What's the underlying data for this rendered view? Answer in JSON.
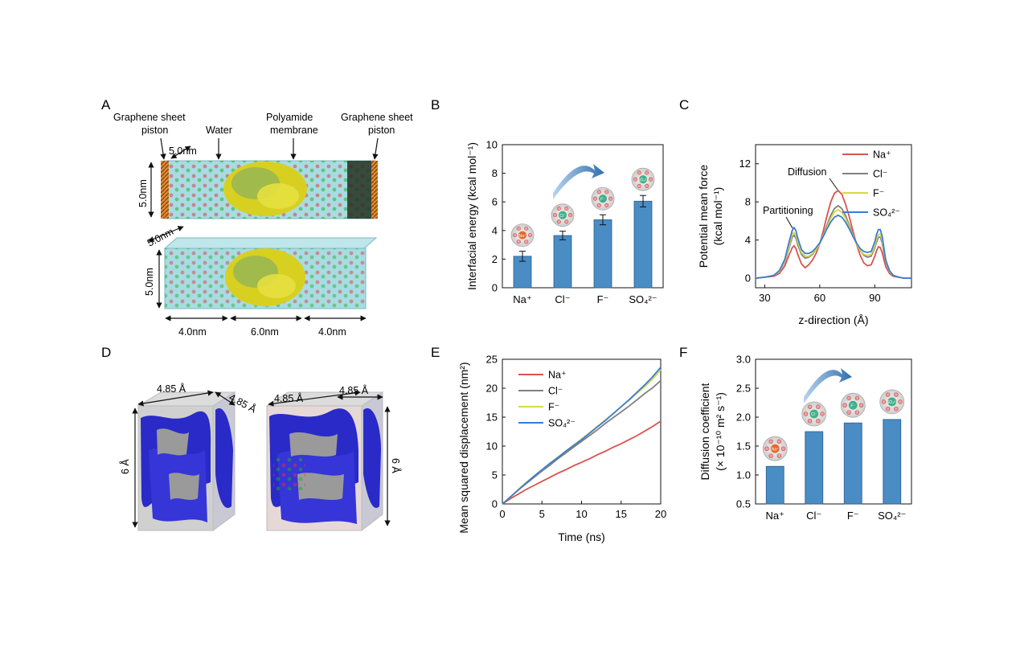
{
  "panels": {
    "A": {
      "letter": "A",
      "labels": {
        "piston_left_1": "Graphene sheet",
        "piston_left_2": "piston",
        "water": "Water",
        "poly_1": "Polyamide",
        "poly_2": "membrane",
        "piston_right_1": "Graphene sheet",
        "piston_right_2": "piston",
        "dim_top_depth": "5.0nm",
        "dim_top_height": "5.0nm",
        "dim_bot_depth": "5.0nm",
        "dim_bot_height": "5.0nm",
        "seg1": "4.0nm",
        "seg2": "6.0nm",
        "seg3": "4.0nm"
      }
    },
    "D": {
      "letter": "D",
      "labels": {
        "l_w": "4.85 Å",
        "l_d": "4.85 Å",
        "l_h": "6 Å",
        "r_w": "4.85 Å",
        "r_d": "4.85 Å",
        "r_h": "6 Å"
      }
    },
    "B": {
      "letter": "B"
    },
    "C": {
      "letter": "C",
      "annotations": {
        "diffusion": "Diffusion",
        "partitioning": "Partitioning"
      }
    },
    "E": {
      "letter": "E"
    },
    "F": {
      "letter": "F"
    }
  },
  "ion_icons": {
    "na": "Na⁺",
    "cl": "Cl⁻",
    "f": "F⁻",
    "so4": "SO₄²⁻"
  },
  "colors": {
    "bar": "#4a8cc4",
    "na": "#d9534f",
    "cl": "#808080",
    "f": "#d8d84a",
    "so4": "#3a7bd5",
    "arrow": "#3a7bbf"
  },
  "chart_data": [
    {
      "panel": "B",
      "type": "bar",
      "categories": [
        "Na⁺",
        "Cl⁻",
        "F⁻",
        "SO₄²⁻"
      ],
      "values": [
        2.2,
        3.65,
        4.75,
        6.05
      ],
      "errors": [
        0.35,
        0.3,
        0.35,
        0.4
      ],
      "ylabel": "Interfacial energy (kcal mol⁻¹)",
      "xlabel": "",
      "ylim": [
        0,
        10
      ],
      "yticks": [
        0,
        2,
        4,
        6,
        8,
        10
      ]
    },
    {
      "panel": "C",
      "type": "line",
      "xlabel": "z-direction (Å)",
      "ylabel_1": "Potential mean force",
      "ylabel_2": "(kcal mol⁻¹)",
      "xlim": [
        25,
        110
      ],
      "ylim": [
        -1,
        14
      ],
      "xticks": [
        30,
        60,
        90
      ],
      "yticks": [
        0,
        4,
        8,
        12
      ],
      "x": [
        25,
        30,
        35,
        38,
        41,
        43,
        45,
        46,
        47,
        48,
        50,
        52,
        54,
        56,
        58,
        60,
        62,
        64,
        66,
        68,
        70,
        72,
        74,
        76,
        78,
        80,
        82,
        84,
        86,
        88,
        90,
        91,
        92,
        93,
        94,
        95,
        96,
        98,
        100,
        103,
        106,
        110
      ],
      "series": [
        {
          "name": "Na⁺",
          "values": [
            0,
            0.1,
            0.2,
            0.5,
            1.3,
            2.3,
            3.2,
            3.4,
            3.1,
            2.5,
            1.5,
            1.1,
            1.4,
            1.9,
            2.6,
            3.6,
            5.0,
            6.6,
            8.0,
            8.9,
            9.2,
            8.8,
            7.8,
            6.5,
            5.0,
            3.6,
            2.4,
            1.6,
            1.3,
            1.4,
            2.3,
            2.9,
            3.3,
            3.2,
            2.7,
            1.9,
            1.2,
            0.5,
            0.2,
            0.1,
            0,
            0
          ]
        },
        {
          "name": "Cl⁻",
          "values": [
            0,
            0.1,
            0.3,
            0.7,
            1.7,
            3.0,
            4.3,
            4.5,
            4.2,
            3.5,
            2.5,
            2.1,
            2.2,
            2.5,
            3.0,
            3.7,
            4.6,
            5.6,
            6.6,
            7.3,
            7.6,
            7.3,
            6.6,
            5.6,
            4.6,
            3.7,
            2.9,
            2.4,
            2.2,
            2.3,
            3.2,
            3.8,
            4.3,
            4.3,
            3.7,
            2.6,
            1.7,
            0.7,
            0.3,
            0.1,
            0,
            0
          ]
        },
        {
          "name": "F⁻",
          "values": [
            0,
            0.1,
            0.3,
            0.7,
            1.8,
            3.2,
            4.6,
            4.8,
            4.5,
            3.8,
            2.7,
            2.3,
            2.3,
            2.6,
            3.0,
            3.6,
            4.5,
            5.4,
            6.3,
            6.9,
            7.2,
            6.9,
            6.3,
            5.4,
            4.5,
            3.6,
            2.9,
            2.5,
            2.4,
            2.5,
            3.4,
            4.1,
            4.6,
            4.6,
            4.0,
            2.8,
            1.8,
            0.7,
            0.3,
            0.1,
            0,
            0
          ]
        },
        {
          "name": "SO₄²⁻",
          "values": [
            0,
            0.1,
            0.3,
            0.8,
            2.0,
            3.6,
            5.0,
            5.3,
            5.0,
            4.2,
            3.0,
            2.6,
            2.6,
            2.8,
            3.2,
            3.7,
            4.4,
            5.2,
            5.9,
            6.4,
            6.6,
            6.4,
            5.9,
            5.2,
            4.4,
            3.7,
            3.1,
            2.8,
            2.7,
            2.8,
            3.8,
            4.6,
            5.1,
            5.1,
            4.4,
            3.1,
            1.9,
            0.8,
            0.3,
            0.1,
            0,
            0
          ]
        }
      ]
    },
    {
      "panel": "E",
      "type": "line",
      "xlabel": "Time (ns)",
      "ylabel": "Mean squared displacement (nm²)",
      "xlim": [
        0,
        20
      ],
      "ylim": [
        0,
        25
      ],
      "xticks": [
        0,
        5,
        10,
        15,
        20
      ],
      "yticks": [
        0,
        5,
        10,
        15,
        20,
        25
      ],
      "x": [
        0,
        1,
        2,
        3,
        4,
        5,
        6,
        7,
        8,
        9,
        10,
        11,
        12,
        13,
        14,
        15,
        16,
        17,
        18,
        19,
        20
      ],
      "series": [
        {
          "name": "Na⁺",
          "values": [
            0,
            0.9,
            1.7,
            2.5,
            3.2,
            3.9,
            4.6,
            5.3,
            5.9,
            6.6,
            7.2,
            7.8,
            8.5,
            9.1,
            9.8,
            10.4,
            11.1,
            11.8,
            12.6,
            13.4,
            14.3
          ]
        },
        {
          "name": "Cl⁻",
          "values": [
            0,
            1.2,
            2.4,
            3.5,
            4.6,
            5.7,
            6.7,
            7.8,
            8.8,
            9.8,
            10.8,
            11.8,
            12.8,
            13.9,
            14.9,
            15.9,
            16.9,
            18.0,
            19.1,
            20.1,
            21.3
          ]
        },
        {
          "name": "F⁻",
          "values": [
            0,
            1.2,
            2.5,
            3.7,
            4.8,
            5.9,
            7.0,
            8.1,
            9.1,
            10.2,
            11.2,
            12.3,
            13.4,
            14.5,
            15.6,
            16.8,
            17.9,
            19.1,
            20.3,
            21.6,
            23.2
          ]
        },
        {
          "name": "SO₄²⁻",
          "values": [
            0,
            1.2,
            2.4,
            3.6,
            4.8,
            5.9,
            7.0,
            8.0,
            9.1,
            10.1,
            11.1,
            12.2,
            13.3,
            14.4,
            15.6,
            16.8,
            18.0,
            19.3,
            20.6,
            22.0,
            23.6
          ]
        }
      ]
    },
    {
      "panel": "F",
      "type": "bar",
      "categories": [
        "Na⁺",
        "Cl⁻",
        "F⁻",
        "SO₄²⁻"
      ],
      "values": [
        1.15,
        1.75,
        1.9,
        1.96
      ],
      "ylabel_1": "Diffusion coefficient",
      "ylabel_2": "(× 10⁻¹⁰ m² s⁻¹)",
      "xlabel": "",
      "ylim": [
        0.5,
        3.0
      ],
      "yticks": [
        0.5,
        1.0,
        1.5,
        2.0,
        2.5,
        3.0
      ]
    }
  ]
}
